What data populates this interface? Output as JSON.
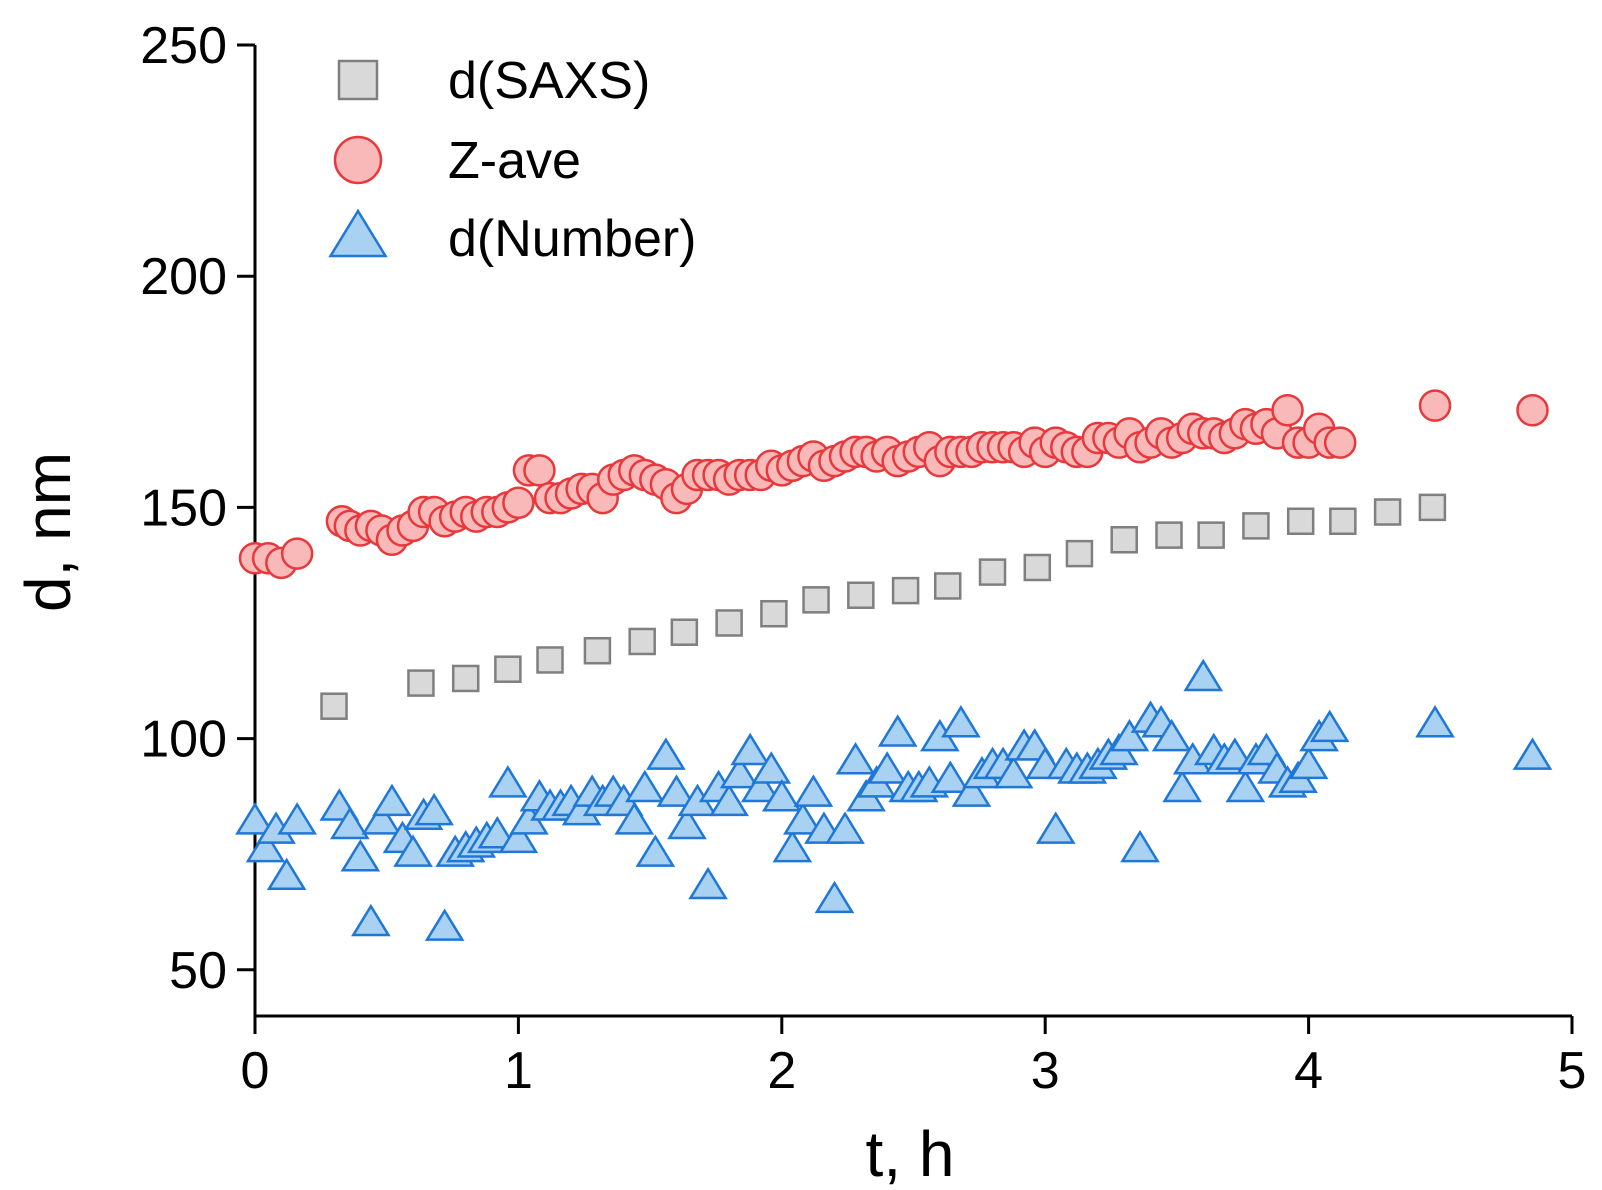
{
  "chart_data": {
    "type": "scatter",
    "title": "",
    "xlabel": "t, h",
    "ylabel": "d, nm",
    "xlim": [
      0,
      5
    ],
    "ylim": [
      40,
      250
    ],
    "xticks": [
      0,
      1,
      2,
      3,
      4,
      5
    ],
    "yticks": [
      50,
      100,
      150,
      200,
      250
    ],
    "grid": false,
    "legend_position": "top-left",
    "series": [
      {
        "name": "d(SAXS)",
        "marker": "square",
        "fill": "#d9d9d9",
        "stroke": "#7f7f7f",
        "points": [
          [
            0.3,
            107
          ],
          [
            0.63,
            112
          ],
          [
            0.8,
            113
          ],
          [
            0.96,
            115
          ],
          [
            1.12,
            117
          ],
          [
            1.3,
            119
          ],
          [
            1.47,
            121
          ],
          [
            1.63,
            123
          ],
          [
            1.8,
            125
          ],
          [
            1.97,
            127
          ],
          [
            2.13,
            130
          ],
          [
            2.3,
            131
          ],
          [
            2.47,
            132
          ],
          [
            2.63,
            133
          ],
          [
            2.8,
            136
          ],
          [
            2.97,
            137
          ],
          [
            3.13,
            140
          ],
          [
            3.3,
            143
          ],
          [
            3.47,
            144
          ],
          [
            3.63,
            144
          ],
          [
            3.8,
            146
          ],
          [
            3.97,
            147
          ],
          [
            4.13,
            147
          ],
          [
            4.3,
            149
          ],
          [
            4.47,
            150
          ]
        ]
      },
      {
        "name": "Z-ave",
        "marker": "circle",
        "fill": "#f9b9b9",
        "stroke": "#e8383c",
        "points": [
          [
            0.0,
            139
          ],
          [
            0.05,
            139
          ],
          [
            0.1,
            138
          ],
          [
            0.16,
            140
          ],
          [
            0.33,
            147
          ],
          [
            0.36,
            146
          ],
          [
            0.4,
            145
          ],
          [
            0.44,
            146
          ],
          [
            0.48,
            145
          ],
          [
            0.52,
            143
          ],
          [
            0.56,
            145
          ],
          [
            0.6,
            146
          ],
          [
            0.64,
            149
          ],
          [
            0.68,
            149
          ],
          [
            0.72,
            147
          ],
          [
            0.76,
            148
          ],
          [
            0.8,
            149
          ],
          [
            0.84,
            148
          ],
          [
            0.88,
            149
          ],
          [
            0.92,
            149
          ],
          [
            0.96,
            150
          ],
          [
            1.0,
            151
          ],
          [
            1.04,
            158
          ],
          [
            1.08,
            158
          ],
          [
            1.12,
            152
          ],
          [
            1.16,
            152
          ],
          [
            1.2,
            153
          ],
          [
            1.24,
            154
          ],
          [
            1.28,
            154
          ],
          [
            1.32,
            152
          ],
          [
            1.36,
            156
          ],
          [
            1.4,
            157
          ],
          [
            1.44,
            158
          ],
          [
            1.48,
            157
          ],
          [
            1.52,
            156
          ],
          [
            1.56,
            155
          ],
          [
            1.6,
            152
          ],
          [
            1.64,
            154
          ],
          [
            1.68,
            157
          ],
          [
            1.72,
            157
          ],
          [
            1.76,
            157
          ],
          [
            1.8,
            156
          ],
          [
            1.84,
            157
          ],
          [
            1.88,
            157
          ],
          [
            1.92,
            157
          ],
          [
            1.96,
            159
          ],
          [
            2.0,
            158
          ],
          [
            2.04,
            159
          ],
          [
            2.08,
            160
          ],
          [
            2.12,
            161
          ],
          [
            2.16,
            159
          ],
          [
            2.2,
            160
          ],
          [
            2.24,
            161
          ],
          [
            2.28,
            162
          ],
          [
            2.32,
            162
          ],
          [
            2.36,
            161
          ],
          [
            2.4,
            162
          ],
          [
            2.44,
            160
          ],
          [
            2.48,
            161
          ],
          [
            2.52,
            162
          ],
          [
            2.56,
            163
          ],
          [
            2.6,
            160
          ],
          [
            2.64,
            162
          ],
          [
            2.68,
            162
          ],
          [
            2.72,
            162
          ],
          [
            2.76,
            163
          ],
          [
            2.8,
            163
          ],
          [
            2.84,
            163
          ],
          [
            2.88,
            163
          ],
          [
            2.92,
            162
          ],
          [
            2.96,
            164
          ],
          [
            3.0,
            162
          ],
          [
            3.04,
            164
          ],
          [
            3.08,
            163
          ],
          [
            3.12,
            162
          ],
          [
            3.16,
            162
          ],
          [
            3.2,
            165
          ],
          [
            3.24,
            165
          ],
          [
            3.28,
            164
          ],
          [
            3.32,
            166
          ],
          [
            3.36,
            163
          ],
          [
            3.4,
            164
          ],
          [
            3.44,
            166
          ],
          [
            3.48,
            164
          ],
          [
            3.52,
            165
          ],
          [
            3.56,
            167
          ],
          [
            3.6,
            166
          ],
          [
            3.64,
            166
          ],
          [
            3.68,
            165
          ],
          [
            3.72,
            166
          ],
          [
            3.76,
            168
          ],
          [
            3.8,
            167
          ],
          [
            3.84,
            168
          ],
          [
            3.88,
            166
          ],
          [
            3.92,
            171
          ],
          [
            3.96,
            164
          ],
          [
            4.0,
            164
          ],
          [
            4.04,
            167
          ],
          [
            4.08,
            164
          ],
          [
            4.12,
            164
          ],
          [
            4.48,
            172
          ],
          [
            4.85,
            171
          ]
        ]
      },
      {
        "name": "d(Number)",
        "marker": "triangle",
        "fill": "#a9d1f1",
        "stroke": "#1f77d8",
        "points": [
          [
            0.0,
            82
          ],
          [
            0.04,
            76
          ],
          [
            0.08,
            80
          ],
          [
            0.12,
            70
          ],
          [
            0.16,
            82
          ],
          [
            0.32,
            85
          ],
          [
            0.36,
            81
          ],
          [
            0.4,
            74
          ],
          [
            0.44,
            60
          ],
          [
            0.48,
            82
          ],
          [
            0.52,
            86
          ],
          [
            0.56,
            78
          ],
          [
            0.6,
            75
          ],
          [
            0.64,
            83
          ],
          [
            0.68,
            84
          ],
          [
            0.72,
            59
          ],
          [
            0.76,
            75
          ],
          [
            0.8,
            76
          ],
          [
            0.84,
            77
          ],
          [
            0.88,
            78
          ],
          [
            0.92,
            79
          ],
          [
            0.96,
            90
          ],
          [
            1.0,
            78
          ],
          [
            1.04,
            82
          ],
          [
            1.08,
            87
          ],
          [
            1.12,
            85
          ],
          [
            1.16,
            85
          ],
          [
            1.2,
            86
          ],
          [
            1.24,
            84
          ],
          [
            1.28,
            88
          ],
          [
            1.32,
            86
          ],
          [
            1.36,
            88
          ],
          [
            1.4,
            86
          ],
          [
            1.44,
            82
          ],
          [
            1.48,
            89
          ],
          [
            1.52,
            75
          ],
          [
            1.56,
            96
          ],
          [
            1.6,
            88
          ],
          [
            1.64,
            81
          ],
          [
            1.68,
            86
          ],
          [
            1.72,
            68
          ],
          [
            1.76,
            89
          ],
          [
            1.8,
            86
          ],
          [
            1.84,
            92
          ],
          [
            1.88,
            97
          ],
          [
            1.92,
            89
          ],
          [
            1.96,
            93
          ],
          [
            2.0,
            87
          ],
          [
            2.04,
            76
          ],
          [
            2.08,
            82
          ],
          [
            2.12,
            88
          ],
          [
            2.16,
            80
          ],
          [
            2.2,
            65
          ],
          [
            2.24,
            80
          ],
          [
            2.28,
            95
          ],
          [
            2.32,
            87
          ],
          [
            2.36,
            90
          ],
          [
            2.4,
            93
          ],
          [
            2.44,
            101
          ],
          [
            2.48,
            89
          ],
          [
            2.52,
            89
          ],
          [
            2.56,
            90
          ],
          [
            2.6,
            100
          ],
          [
            2.64,
            91
          ],
          [
            2.68,
            103
          ],
          [
            2.72,
            88
          ],
          [
            2.76,
            92
          ],
          [
            2.8,
            94
          ],
          [
            2.84,
            94
          ],
          [
            2.88,
            92
          ],
          [
            2.92,
            98
          ],
          [
            2.96,
            98
          ],
          [
            3.0,
            94
          ],
          [
            3.04,
            80
          ],
          [
            3.08,
            94
          ],
          [
            3.12,
            93
          ],
          [
            3.16,
            93
          ],
          [
            3.2,
            94
          ],
          [
            3.24,
            96
          ],
          [
            3.28,
            97
          ],
          [
            3.32,
            100
          ],
          [
            3.36,
            76
          ],
          [
            3.4,
            104
          ],
          [
            3.44,
            103
          ],
          [
            3.48,
            100
          ],
          [
            3.52,
            89
          ],
          [
            3.56,
            95
          ],
          [
            3.6,
            113
          ],
          [
            3.64,
            97
          ],
          [
            3.68,
            95
          ],
          [
            3.72,
            96
          ],
          [
            3.76,
            89
          ],
          [
            3.8,
            95
          ],
          [
            3.84,
            97
          ],
          [
            3.88,
            93
          ],
          [
            3.92,
            90
          ],
          [
            3.96,
            91
          ],
          [
            4.0,
            94
          ],
          [
            4.04,
            100
          ],
          [
            4.08,
            102
          ],
          [
            4.48,
            103
          ],
          [
            4.85,
            96
          ]
        ]
      }
    ]
  }
}
